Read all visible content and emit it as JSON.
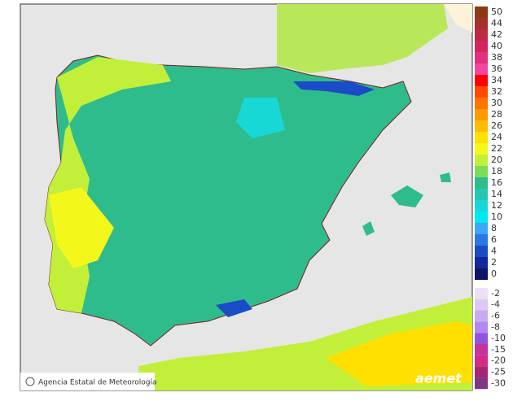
{
  "legend": {
    "positive": [
      {
        "label": "50",
        "color": "#8b3a14"
      },
      {
        "label": "44",
        "color": "#a3312c"
      },
      {
        "label": "42",
        "color": "#bd2a44"
      },
      {
        "label": "40",
        "color": "#d1265e"
      },
      {
        "label": "38",
        "color": "#e3307d"
      },
      {
        "label": "36",
        "color": "#f2479f"
      },
      {
        "label": "34",
        "color": "#ff0000"
      },
      {
        "label": "32",
        "color": "#ff4a00"
      },
      {
        "label": "30",
        "color": "#ff7400"
      },
      {
        "label": "28",
        "color": "#ff9a00"
      },
      {
        "label": "26",
        "color": "#ffbc00"
      },
      {
        "label": "24",
        "color": "#ffe000"
      },
      {
        "label": "22",
        "color": "#f4f81a"
      },
      {
        "label": "20",
        "color": "#c2ef3a"
      },
      {
        "label": "18",
        "color": "#7bdc5a"
      },
      {
        "label": "16",
        "color": "#2fbc8c"
      },
      {
        "label": "14",
        "color": "#25c7b0"
      },
      {
        "label": "12",
        "color": "#18d8d6"
      },
      {
        "label": "10",
        "color": "#00e8f0"
      },
      {
        "label": "8",
        "color": "#3aa6f5"
      },
      {
        "label": "6",
        "color": "#2a78e2"
      },
      {
        "label": "4",
        "color": "#1a4cc6"
      },
      {
        "label": "2",
        "color": "#10289a"
      },
      {
        "label": "0",
        "color": "#0c1466"
      }
    ],
    "negative": [
      {
        "label": "-2",
        "color": "#ece0f4"
      },
      {
        "label": "-4",
        "color": "#dcc8f2"
      },
      {
        "label": "-6",
        "color": "#c8aaf0"
      },
      {
        "label": "-8",
        "color": "#b088ee"
      },
      {
        "label": "-10",
        "color": "#9254e0"
      },
      {
        "label": "-15",
        "color": "#c4349a"
      },
      {
        "label": "-20",
        "color": "#d62a86"
      },
      {
        "label": "-25",
        "color": "#a82476"
      },
      {
        "label": "-30",
        "color": "#7e3686"
      }
    ]
  },
  "footer": {
    "credit": "Agencia Estatal de Meteorología",
    "logo": "aemet"
  }
}
